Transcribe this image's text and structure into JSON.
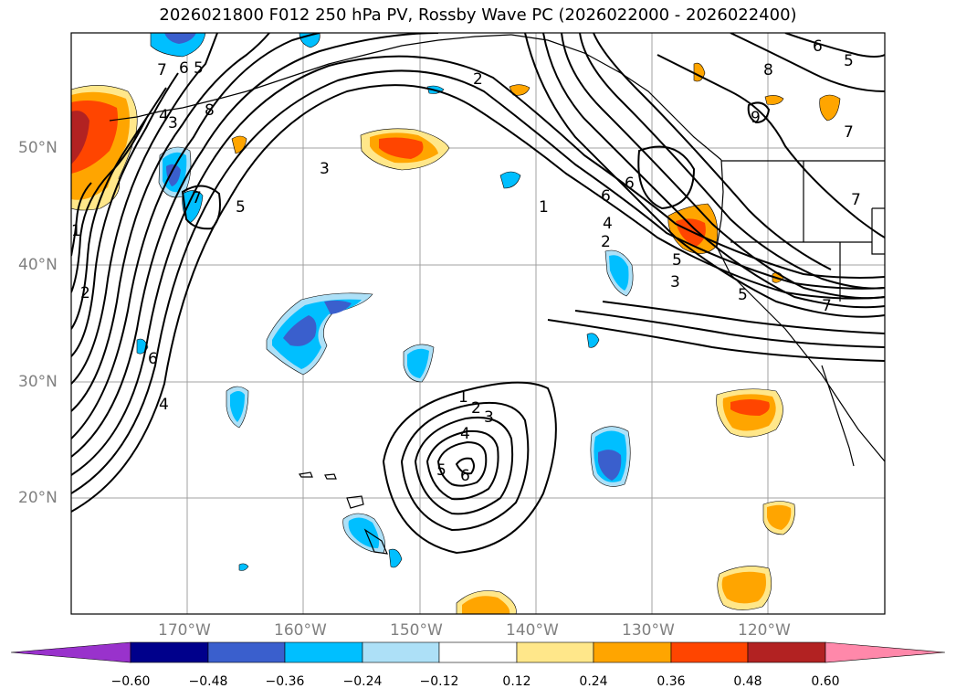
{
  "title": "2026021800 F012 250 hPa PV, Rossby Wave PC (2026022000 - 2026022400)",
  "latitude_labels": [
    "50°N",
    "40°N",
    "30°N",
    "20°N"
  ],
  "longitude_labels": [
    "170°W",
    "160°W",
    "150°W",
    "140°W",
    "130°W",
    "120°W"
  ],
  "colorbar": {
    "ticks": [
      "−0.60",
      "−0.48",
      "−0.36",
      "−0.24",
      "−0.12",
      "0.12",
      "0.24",
      "0.36",
      "0.48",
      "0.60"
    ],
    "colors": [
      "#9932CC",
      "#00008B",
      "#3A5FCD",
      "#00BFFF",
      "#ADE0F7",
      "#FFFFFF",
      "#FFE78A",
      "#FFA500",
      "#FF4500",
      "#B22222",
      "#FF88AA"
    ]
  },
  "contour_labels": [
    "1",
    "2",
    "3",
    "4",
    "5",
    "6",
    "7",
    "8",
    "9"
  ],
  "colors": {
    "contour": "#000000",
    "grid": "#a0a0a0",
    "coast": "#000000"
  }
}
